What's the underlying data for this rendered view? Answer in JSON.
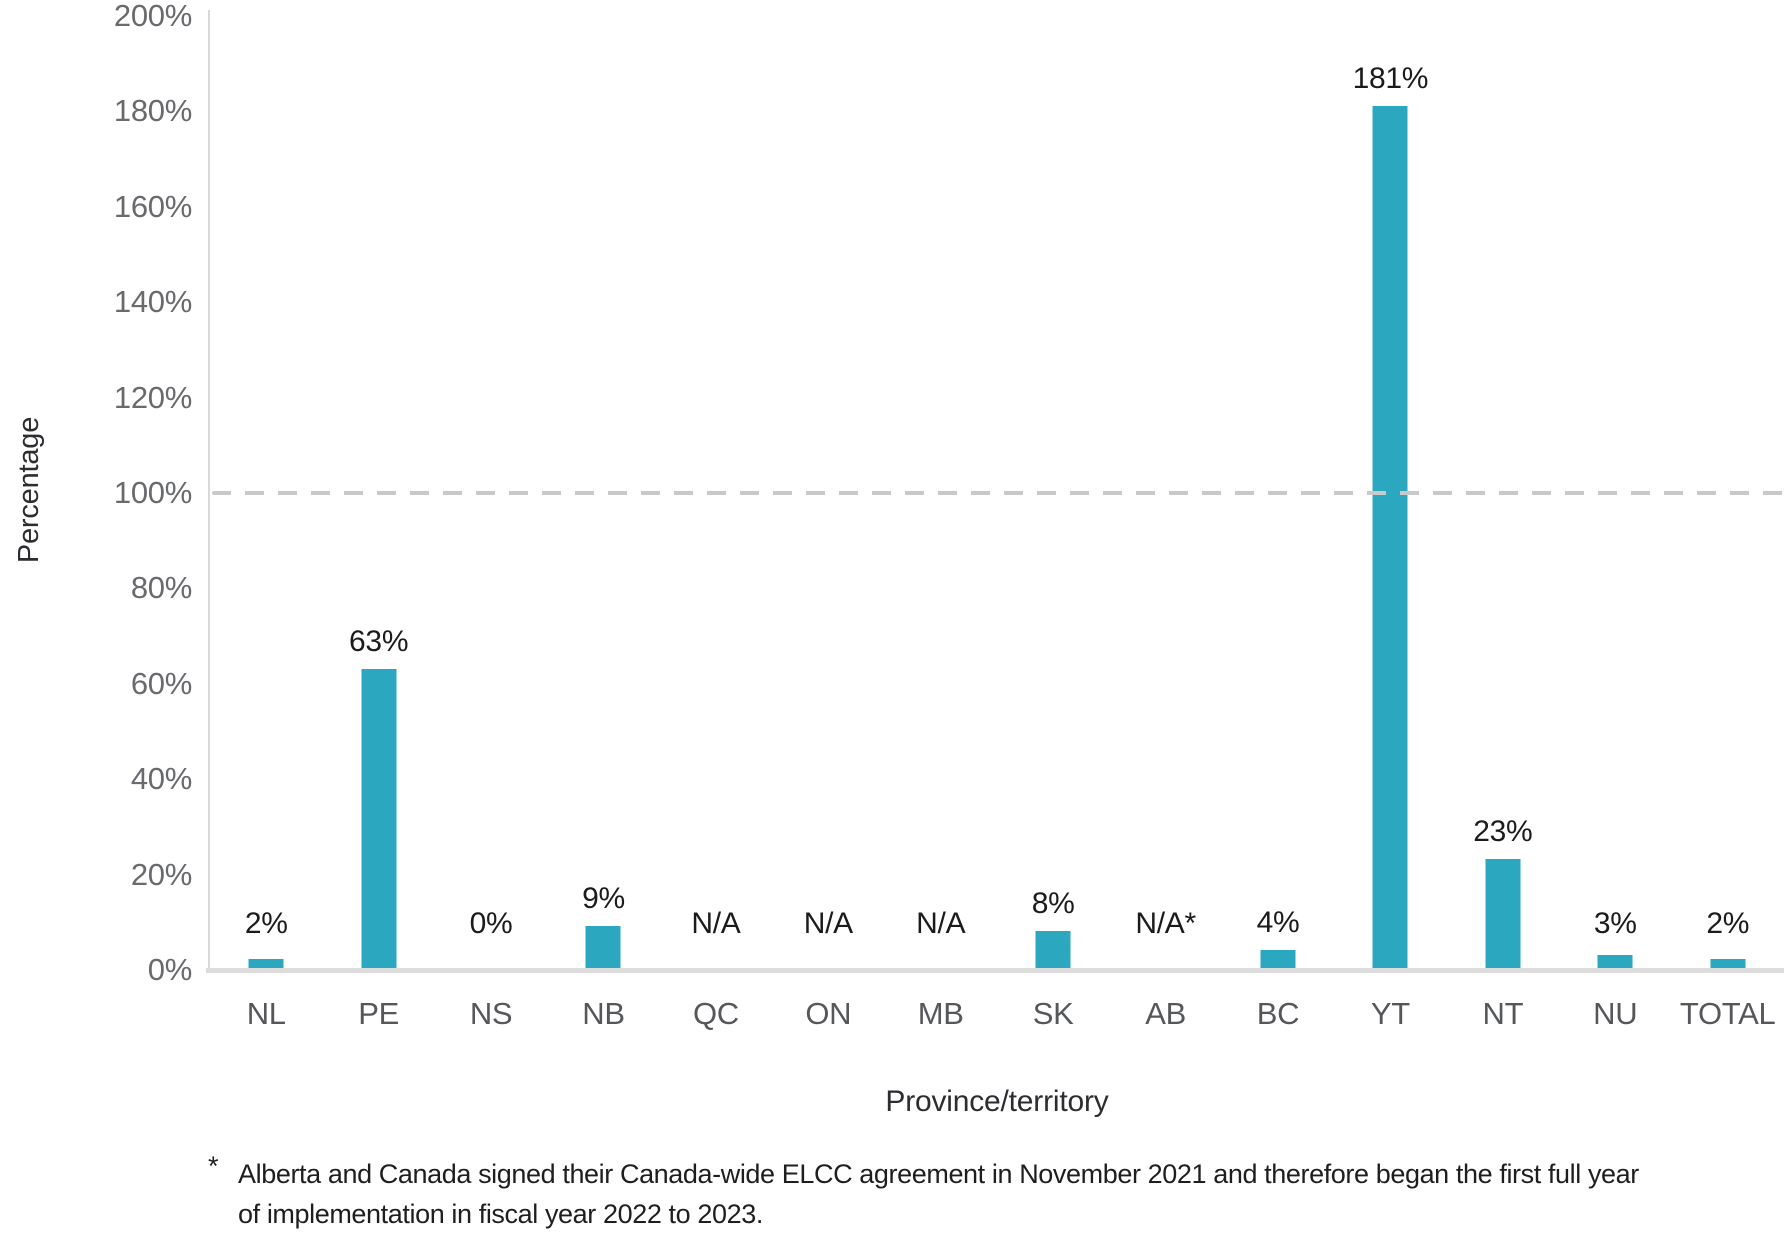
{
  "chart_data": {
    "type": "bar",
    "title": "",
    "categories": [
      "NL",
      "PE",
      "NS",
      "NB",
      "QC",
      "ON",
      "MB",
      "SK",
      "AB",
      "BC",
      "YT",
      "NT",
      "NU",
      "TOTAL"
    ],
    "values": [
      2,
      63,
      0,
      9,
      null,
      null,
      null,
      8,
      null,
      4,
      181,
      23,
      3,
      2
    ],
    "value_labels": [
      "2%",
      "63%",
      "0%",
      "9%",
      "N/A",
      "N/A",
      "N/A",
      "8%",
      "N/A*",
      "4%",
      "181%",
      "23%",
      "3%",
      "2%"
    ],
    "xlabel": "Province/territory",
    "ylabel": "Percentage",
    "ylim": [
      0,
      200
    ],
    "y_ticks": [
      0,
      20,
      40,
      60,
      80,
      100,
      120,
      140,
      160,
      180,
      200
    ],
    "y_tick_labels": [
      "0%",
      "20%",
      "40%",
      "60%",
      "80%",
      "100%",
      "120%",
      "140%",
      "160%",
      "180%",
      "200%"
    ],
    "reference_line_y": 100,
    "grid": false,
    "legend": null,
    "bar_color": "#2BA8BF"
  },
  "footnote": {
    "marker": "*",
    "lines": [
      "Alberta and Canada signed their Canada-wide ELCC agreement in November 2021 and therefore began the first full year",
      "of implementation in fiscal year 2022 to 2023."
    ]
  },
  "colors": {
    "bar": "#2BA8BF",
    "axis_line": "#D8D8D8",
    "baseline": "#DCDCDC",
    "reference_line_dash": "#C9C9C9",
    "y_tick_label": "#696A6D",
    "x_tick_label": "#55575B",
    "data_label": "#1B1B1B",
    "axis_title": "#2C2D30",
    "footnote_text": "#1E1E1E",
    "background": "#FFFFFF"
  }
}
